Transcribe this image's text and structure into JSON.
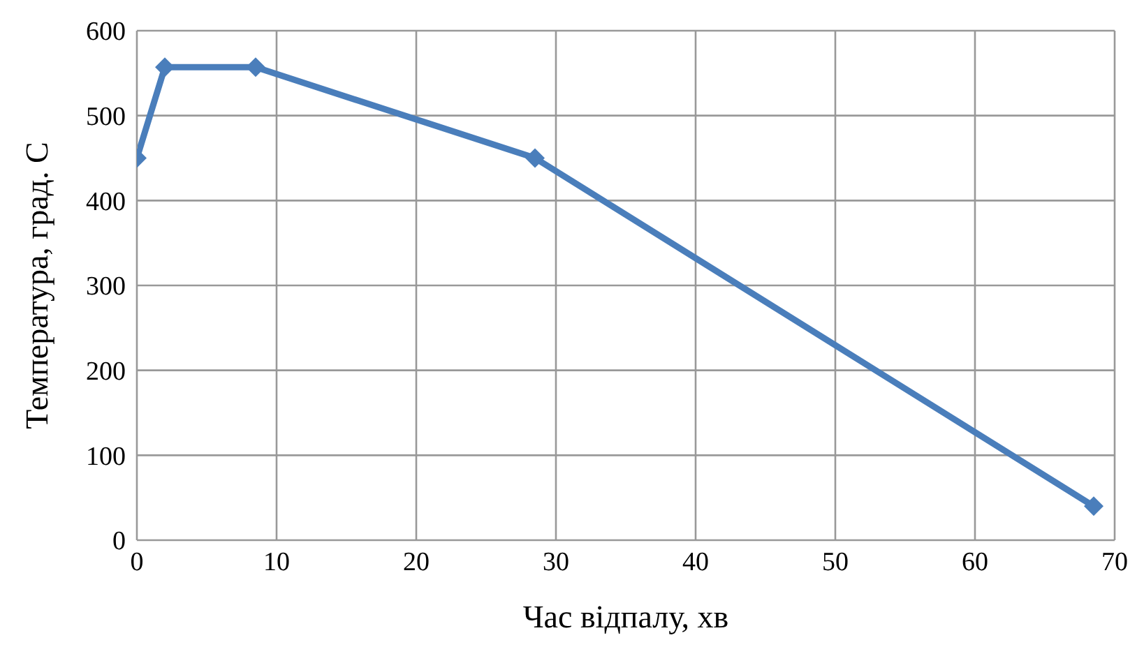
{
  "chart_data": {
    "type": "line",
    "xlabel": "Час відпалу, хв",
    "ylabel": "Температура, град. С",
    "x": [
      0,
      2,
      8.5,
      28.5,
      68.5
    ],
    "series": [
      {
        "color": "#4a7ebb",
        "values": [
          450,
          557,
          557,
          450,
          40
        ]
      }
    ],
    "xlim": [
      0,
      70
    ],
    "xticks": [
      0,
      10,
      20,
      30,
      40,
      50,
      60,
      70
    ],
    "ylim": [
      0,
      600
    ],
    "yticks": [
      0,
      100,
      200,
      300,
      400,
      500,
      600
    ],
    "grid": true,
    "legend": false,
    "marker": "diamond",
    "line_style": "solid"
  }
}
